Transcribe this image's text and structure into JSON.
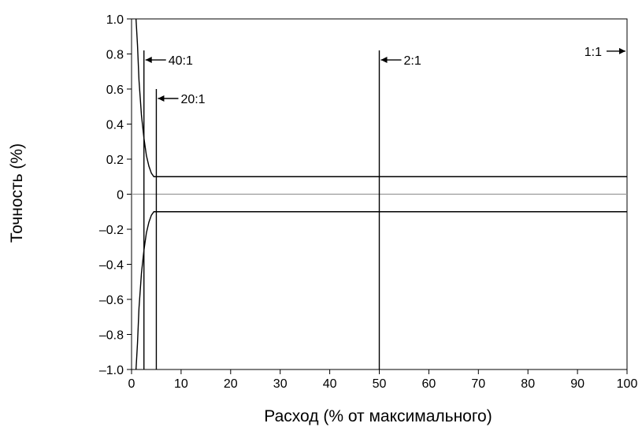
{
  "chart_data": {
    "type": "line",
    "xlabel": "Расход (% от максимального)",
    "ylabel": "Точность (%)",
    "xlim": [
      0,
      100
    ],
    "ylim": [
      -1.0,
      1.0
    ],
    "x_ticks": [
      0,
      10,
      20,
      30,
      40,
      50,
      60,
      70,
      80,
      90,
      100
    ],
    "x_tick_labels": [
      "0",
      "10",
      "20",
      "30",
      "40",
      "50",
      "60",
      "70",
      "80",
      "90",
      "100"
    ],
    "y_ticks": [
      1.0,
      0.8,
      0.6,
      0.4,
      0.2,
      0,
      -0.2,
      -0.4,
      -0.6,
      -0.8,
      -1.0
    ],
    "y_tick_labels": [
      "1.0",
      "0.8",
      "0.6",
      "0.4",
      "0.2",
      "0",
      "–0.2",
      "–0.4",
      "–0.6",
      "–0.8",
      "–1.0"
    ],
    "grid": false,
    "series": [
      {
        "x": [
          0.9,
          1.2,
          1.5,
          2.0,
          2.5,
          3.0,
          3.5,
          4.0,
          4.5,
          5.0,
          10,
          20,
          30,
          40,
          50,
          60,
          70,
          80,
          90,
          100
        ],
        "y": [
          1.0,
          0.85,
          0.65,
          0.45,
          0.32,
          0.22,
          0.16,
          0.12,
          0.1,
          0.1,
          0.1,
          0.1,
          0.1,
          0.1,
          0.1,
          0.1,
          0.1,
          0.1,
          0.1,
          0.1
        ]
      },
      {
        "x": [
          0.9,
          1.2,
          1.5,
          2.0,
          2.5,
          3.0,
          3.5,
          4.0,
          4.5,
          5.0,
          10,
          20,
          30,
          40,
          50,
          60,
          70,
          80,
          90,
          100
        ],
        "y": [
          -1.0,
          -0.85,
          -0.65,
          -0.45,
          -0.32,
          -0.22,
          -0.16,
          -0.12,
          -0.1,
          -0.1,
          -0.1,
          -0.1,
          -0.1,
          -0.1,
          -0.1,
          -0.1,
          -0.1,
          -0.1,
          -0.1,
          -0.1
        ]
      }
    ],
    "reference_lines": [
      {
        "axis": "y",
        "value": 0
      }
    ],
    "annotations": [
      {
        "x": 2.5,
        "y_top": 0.82,
        "label": "40:1",
        "arrow": "left"
      },
      {
        "x": 5,
        "y_top": 0.6,
        "label": "20:1",
        "arrow": "left"
      },
      {
        "x": 50,
        "y_top": 0.82,
        "label": "2:1",
        "arrow": "left"
      },
      {
        "x": 100,
        "y_top": 0.87,
        "label": "1:1",
        "arrow": "right"
      }
    ]
  },
  "colors": {
    "curve": "#000000",
    "zero_line": "#999999",
    "frame": "#000000"
  }
}
